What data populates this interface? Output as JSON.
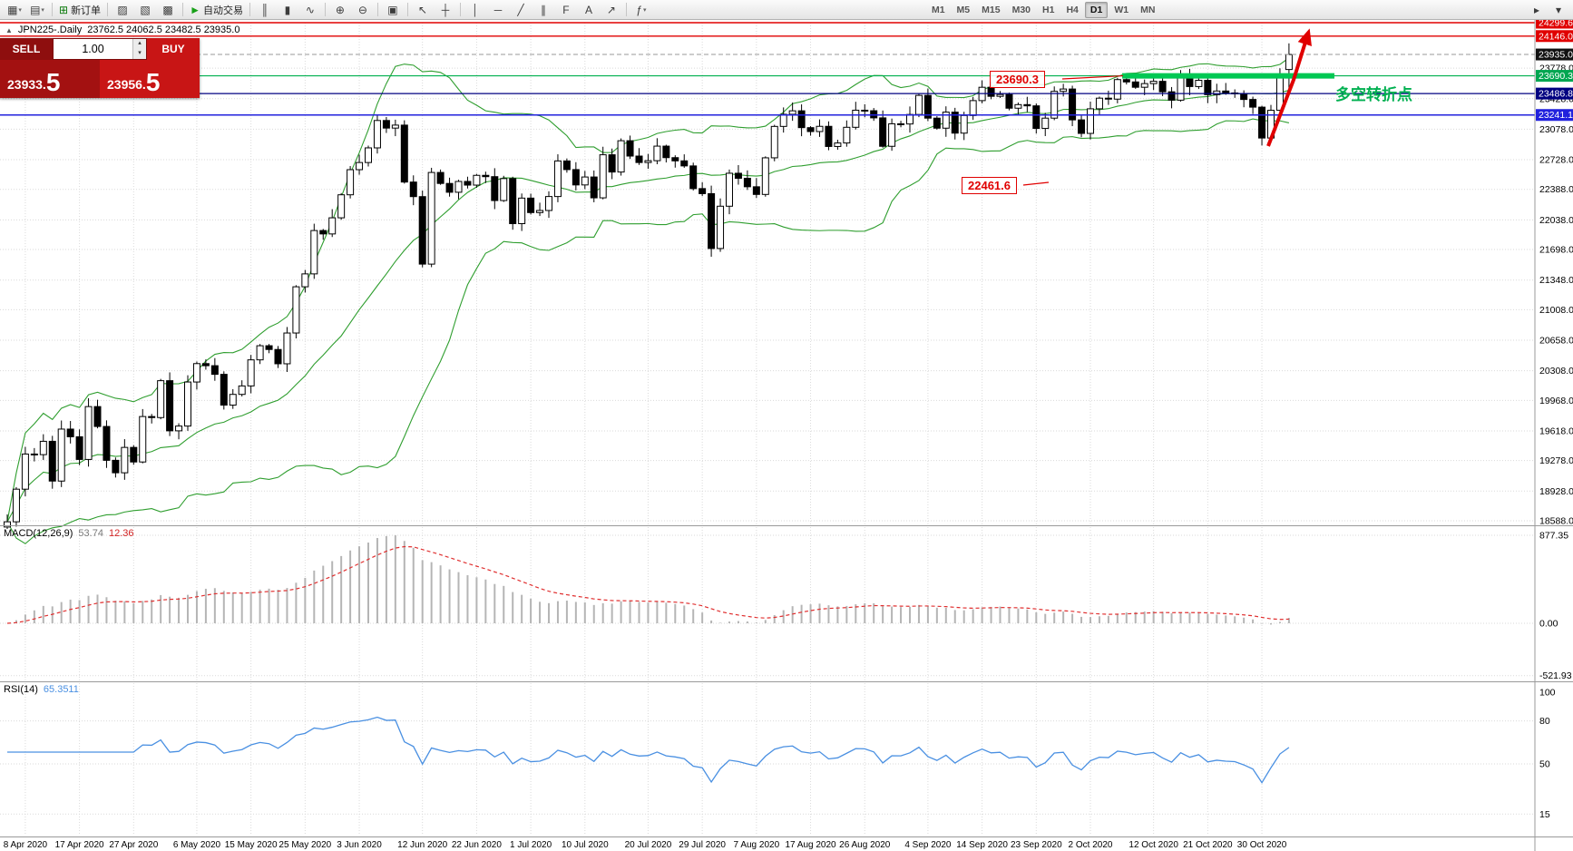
{
  "icons": {
    "symbol_marker": "▲",
    "dropdown": "▾",
    "spin_up": "▴",
    "spin_down": "▾"
  },
  "toolbar": {
    "buttons": [
      {
        "name": "new-chart-button",
        "glyph": "▦",
        "dropdown": true
      },
      {
        "name": "profiles-button",
        "glyph": "▤",
        "dropdown": true
      },
      {
        "name": "sep"
      },
      {
        "name": "new-order-button",
        "glyph": "⊞",
        "glyph_color": "#0a7a0a",
        "label": "新订单"
      },
      {
        "name": "sep"
      },
      {
        "name": "market-watch-button",
        "glyph": "▨"
      },
      {
        "name": "data-window-button",
        "glyph": "▧"
      },
      {
        "name": "terminal-button",
        "glyph": "▩"
      },
      {
        "name": "sep"
      },
      {
        "name": "autotrading-button",
        "glyph": "►",
        "glyph_color": "#18a018",
        "label": "自动交易"
      },
      {
        "name": "sep"
      },
      {
        "name": "bar-chart-button",
        "glyph": "║"
      },
      {
        "name": "candlestick-chart-button",
        "glyph": "▮"
      },
      {
        "name": "line-chart-button",
        "glyph": "∿"
      },
      {
        "name": "sep"
      },
      {
        "name": "zoom-in-button",
        "glyph": "⊕"
      },
      {
        "name": "zoom-out-button",
        "glyph": "⊖"
      },
      {
        "name": "sep"
      },
      {
        "name": "tile-windows-button",
        "glyph": "▣"
      },
      {
        "name": "sep"
      },
      {
        "name": "cursor-button",
        "glyph": "↖"
      },
      {
        "name": "crosshair-button",
        "glyph": "┼"
      },
      {
        "name": "sep"
      },
      {
        "name": "vertical-line-button",
        "glyph": "│"
      },
      {
        "name": "horizontal-line-button",
        "glyph": "─"
      },
      {
        "name": "trendline-button",
        "glyph": "╱"
      },
      {
        "name": "channel-button",
        "glyph": "∥"
      },
      {
        "name": "fibonacci-button",
        "glyph": "F"
      },
      {
        "name": "text-button",
        "glyph": "A"
      },
      {
        "name": "arrow-tool-button",
        "glyph": "↗"
      },
      {
        "name": "sep"
      },
      {
        "name": "indicators-button",
        "glyph": "ƒ",
        "dropdown": true
      },
      {
        "name": "spacer"
      }
    ],
    "timeframes": [
      "M1",
      "M5",
      "M15",
      "M30",
      "H1",
      "H4",
      "D1",
      "W1",
      "MN"
    ],
    "active_timeframe": "D1",
    "right_buttons": [
      {
        "name": "chart-shift-button",
        "glyph": "▸"
      },
      {
        "name": "auto-scroll-button",
        "glyph": "▾"
      }
    ]
  },
  "chart_header": {
    "symbol_period": "JPN225-.Daily",
    "ohlc": "23762.5 24062.5 23482.5 23935.0"
  },
  "trade_panel": {
    "sell_label": "SELL",
    "buy_label": "BUY",
    "lot_value": "1.00",
    "sell_price": "23933.",
    "sell_price_big": "5",
    "buy_price": "23956.",
    "buy_price_big": "5"
  },
  "annotations": {
    "resistance_label": "23690.3",
    "support_label": "22461.6",
    "note_text": "多空转折点",
    "note_color": "#00b050",
    "arrow_color": "#e00000"
  },
  "lines": {
    "resistance_1": 24299.6,
    "resistance_2": 24146.0,
    "pivot_green": 23690.3,
    "level_navy": 23486.8,
    "level_blue": 23241.1,
    "bid": 23935.0
  },
  "price_axis": {
    "tags": [
      {
        "value": "24299.6",
        "price": 24299.6,
        "color": "#e00000"
      },
      {
        "value": "24146.0",
        "price": 24146.0,
        "color": "#e00000"
      },
      {
        "value": "23935.0",
        "price": 23935.0,
        "color": "#111111"
      },
      {
        "value": "23690.3",
        "price": 23690.3,
        "color": "#00a651"
      },
      {
        "value": "23486.8",
        "price": 23486.8,
        "color": "#000080"
      },
      {
        "value": "23241.1",
        "price": 23241.1,
        "color": "#2222dd"
      }
    ],
    "grid_labels": [
      {
        "value": "23778.0",
        "price": 23778
      },
      {
        "value": "23428.0",
        "price": 23428
      },
      {
        "value": "23078.0",
        "price": 23078
      },
      {
        "value": "22728.0",
        "price": 22728
      },
      {
        "value": "22388.0",
        "price": 22388
      },
      {
        "value": "22038.0",
        "price": 22038
      },
      {
        "value": "21698.0",
        "price": 21698
      },
      {
        "value": "21348.0",
        "price": 21348
      },
      {
        "value": "21008.0",
        "price": 21008
      },
      {
        "value": "20658.0",
        "price": 20658
      },
      {
        "value": "20308.0",
        "price": 20308
      },
      {
        "value": "19968.0",
        "price": 19968
      },
      {
        "value": "19618.0",
        "price": 19618
      },
      {
        "value": "19278.0",
        "price": 19278
      },
      {
        "value": "18928.0",
        "price": 18928
      },
      {
        "value": "18588.0",
        "price": 18588
      }
    ]
  },
  "macd_panel": {
    "name": "MACD(12,26,9)",
    "main_value": "53.74",
    "signal_value": "12.36",
    "axis": [
      "877.35",
      "0.00",
      "-521.93"
    ],
    "axis_values": [
      877.35,
      0,
      -521.93
    ]
  },
  "rsi_panel": {
    "name": "RSI(14)",
    "value": "65.3511",
    "axis": [
      "100",
      "80",
      "50",
      "15"
    ],
    "axis_values": [
      100,
      80,
      50,
      15
    ]
  },
  "chart_data": {
    "type": "candlestick",
    "symbol": "JPN225-",
    "period": "Daily",
    "ohlc_today": {
      "open": 23762.5,
      "high": 24062.5,
      "low": 23482.5,
      "close": 23935.0
    },
    "ylim": [
      18504,
      24341
    ],
    "x_tick_labels": [
      "8 Apr 2020",
      "17 Apr 2020",
      "27 Apr 2020",
      "6 May 2020",
      "15 May 2020",
      "25 May 2020",
      "3 Jun 2020",
      "12 Jun 2020",
      "22 Jun 2020",
      "1 Jul 2020",
      "10 Jul 2020",
      "20 Jul 2020",
      "29 Jul 2020",
      "7 Aug 2020",
      "17 Aug 2020",
      "26 Aug 2020",
      "4 Sep 2020",
      "14 Sep 2020",
      "23 Sep 2020",
      "2 Oct 2020",
      "12 Oct 2020",
      "21 Oct 2020",
      "30 Oct 2020"
    ],
    "closes": [
      18576,
      18950,
      19353,
      19346,
      19499,
      19043,
      19639,
      19551,
      19291,
      19897,
      19669,
      19281,
      19138,
      19429,
      19262,
      19783,
      19771,
      20194,
      19619,
      19674,
      20179,
      20390,
      20366,
      20267,
      19914,
      20037,
      20134,
      20433,
      20595,
      20552,
      20388,
      20741,
      21271,
      21419,
      21916,
      21877,
      22062,
      22326,
      22614,
      22696,
      22864,
      23178,
      23091,
      23125,
      22472,
      22305,
      21531,
      22582,
      22456,
      22355,
      22479,
      22437,
      22549,
      22534,
      22260,
      22512,
      21995,
      22288,
      22122,
      22146,
      22306,
      22714,
      22615,
      22439,
      22530,
      22291,
      22785,
      22587,
      22946,
      22770,
      22696,
      22717,
      22884,
      22752,
      22715,
      22657,
      22397,
      22339,
      21710,
      22195,
      22573,
      22515,
      22418,
      22330,
      22750,
      23110,
      23249,
      23289,
      23096,
      23051,
      23111,
      22880,
      22920,
      23100,
      23296,
      23290,
      23208,
      22882,
      23140,
      23138,
      23247,
      23466,
      23205,
      23090,
      23274,
      23033,
      23235,
      23406,
      23559,
      23455,
      23476,
      23319,
      23360,
      23346,
      23087,
      23205,
      23512,
      23539,
      23185,
      23030,
      23312,
      23434,
      23423,
      23647,
      23620,
      23559,
      23601,
      23627,
      23507,
      23411,
      23671,
      23567,
      23639,
      23474,
      23516,
      23494,
      23485,
      23419,
      23331,
      22977,
      23295,
      23695,
      23935
    ],
    "indicators": {
      "bollinger": {
        "period": 20,
        "deviation": 2
      },
      "macd": {
        "fast": 12,
        "slow": 26,
        "signal": 9,
        "values": [
          53.74,
          12.36
        ]
      },
      "rsi": {
        "period": 14,
        "value": 65.3511
      }
    }
  }
}
